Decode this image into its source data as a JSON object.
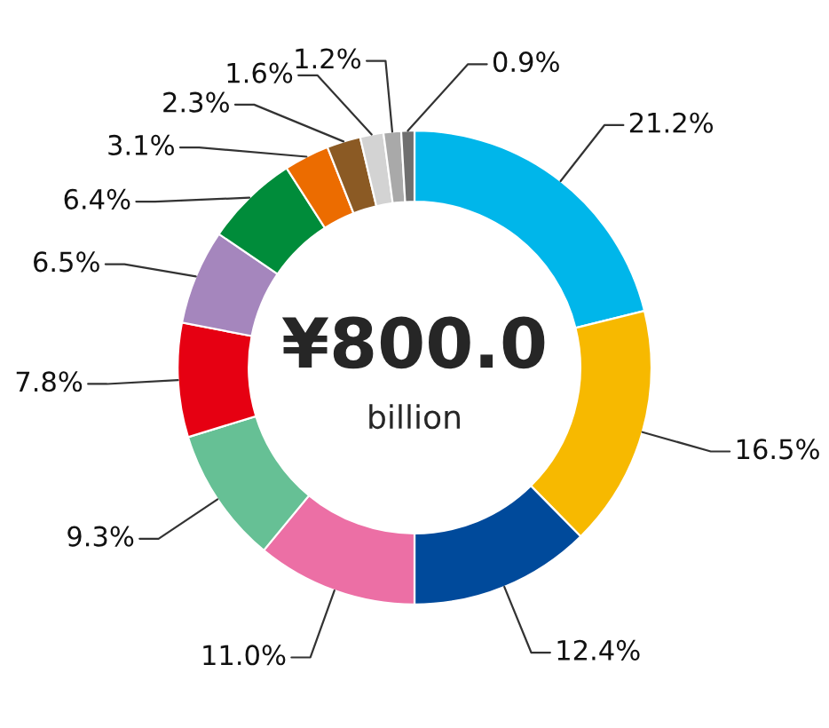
{
  "chart_data": {
    "type": "donut",
    "categories": [
      null,
      null,
      null,
      null,
      null,
      null,
      null,
      null,
      null,
      null,
      null,
      null,
      null
    ],
    "values": [
      21.2,
      16.5,
      12.4,
      11.0,
      9.3,
      7.8,
      6.5,
      6.4,
      3.1,
      2.3,
      1.6,
      1.2,
      0.9
    ],
    "value_labels": [
      "21.2%",
      "16.5%",
      "12.4%",
      "11.0%",
      "9.3%",
      "7.8%",
      "6.5%",
      "6.4%",
      "3.1%",
      "2.3%",
      "1.6%",
      "1.2%",
      "0.9%"
    ],
    "colors": [
      "#00b6ea",
      "#f7b900",
      "#004a9b",
      "#ec6fa5",
      "#66c095",
      "#e60012",
      "#a586bd",
      "#008c3a",
      "#ec6c00",
      "#8b5a24",
      "#d3d3d3",
      "#a9a9a9",
      "#6f6f6f"
    ],
    "annotations": [
      "¥800.0",
      "billion"
    ]
  }
}
